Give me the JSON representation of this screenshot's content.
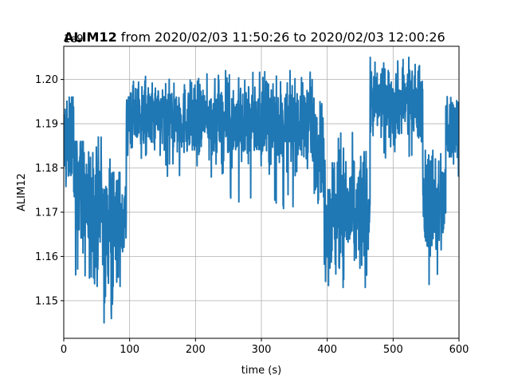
{
  "chart_data": {
    "type": "line",
    "title_bold": "ALIM12",
    "title_rest": " from 2020/02/03 11:50:26 to 2020/02/03 12:00:26",
    "xlabel": "time (s)",
    "ylabel": "ALIM12",
    "offset_text": "1e9",
    "xlim": [
      0,
      600
    ],
    "ylim": [
      1.1415,
      1.2075
    ],
    "x_ticks": [
      0,
      100,
      200,
      300,
      400,
      500,
      600
    ],
    "x_tick_labels": [
      "0",
      "100",
      "200",
      "300",
      "400",
      "500",
      "600"
    ],
    "y_ticks": [
      1.15,
      1.16,
      1.17,
      1.18,
      1.19,
      1.2
    ],
    "y_tick_labels": [
      "1.15",
      "1.16",
      "1.17",
      "1.18",
      "1.19",
      "1.20"
    ],
    "grid": true,
    "line_color": "#1f77b4",
    "segments": [
      {
        "x_start": 0,
        "x_end": 8,
        "mean": 1.186,
        "spread": 0.006,
        "min": 1.175,
        "max": 1.199
      },
      {
        "x_start": 8,
        "x_end": 16,
        "mean": 1.188,
        "spread": 0.006,
        "min": 1.17,
        "max": 1.196
      },
      {
        "x_start": 16,
        "x_end": 30,
        "mean": 1.176,
        "spread": 0.008,
        "min": 1.148,
        "max": 1.186
      },
      {
        "x_start": 30,
        "x_end": 60,
        "mean": 1.17,
        "spread": 0.007,
        "min": 1.152,
        "max": 1.187
      },
      {
        "x_start": 60,
        "x_end": 75,
        "mean": 1.165,
        "spread": 0.009,
        "min": 1.145,
        "max": 1.182
      },
      {
        "x_start": 75,
        "x_end": 95,
        "mean": 1.169,
        "spread": 0.006,
        "min": 1.15,
        "max": 1.179
      },
      {
        "x_start": 95,
        "x_end": 240,
        "mean": 1.191,
        "spread": 0.004,
        "min": 1.177,
        "max": 1.202
      },
      {
        "x_start": 240,
        "x_end": 380,
        "mean": 1.19,
        "spread": 0.0045,
        "min": 1.17,
        "max": 1.202
      },
      {
        "x_start": 380,
        "x_end": 395,
        "mean": 1.186,
        "spread": 0.005,
        "min": 1.172,
        "max": 1.195
      },
      {
        "x_start": 395,
        "x_end": 465,
        "mean": 1.17,
        "spread": 0.007,
        "min": 1.153,
        "max": 1.188
      },
      {
        "x_start": 465,
        "x_end": 545,
        "mean": 1.195,
        "spread": 0.004,
        "min": 1.182,
        "max": 1.205
      },
      {
        "x_start": 545,
        "x_end": 580,
        "mean": 1.172,
        "spread": 0.006,
        "min": 1.153,
        "max": 1.184
      },
      {
        "x_start": 580,
        "x_end": 600,
        "mean": 1.189,
        "spread": 0.004,
        "min": 1.178,
        "max": 1.197
      }
    ]
  }
}
